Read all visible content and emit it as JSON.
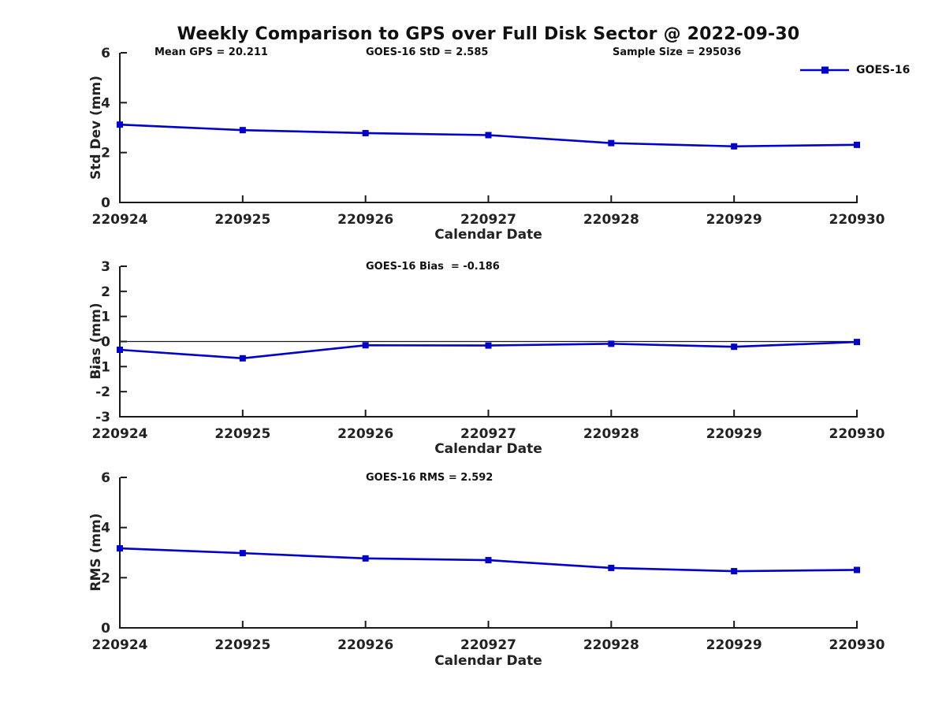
{
  "figure": {
    "title": "Weekly Comparison to GPS over Full Disk Sector @ 2022-09-30",
    "background": "#ffffff",
    "text_color": "#111111",
    "axis_color": "#1a1a1a"
  },
  "legend": {
    "label": "GOES-16",
    "color": "#0000cc"
  },
  "chart_data": [
    {
      "type": "line",
      "name": "std-dev-vs-date",
      "annotations": [
        "Mean GPS = 20.211",
        "GOES-16 StD = 2.585",
        "Sample Size = 295036"
      ],
      "categories": [
        "220924",
        "220925",
        "220926",
        "220927",
        "220928",
        "220929",
        "220930"
      ],
      "series": [
        {
          "name": "GOES-16",
          "color": "#0000cc",
          "values": [
            3.12,
            2.9,
            2.78,
            2.7,
            2.38,
            2.25,
            2.31
          ]
        }
      ],
      "xlabel": "Calendar Date",
      "ylabel": "Std Dev (mm)",
      "ylim": [
        0,
        6
      ],
      "yticks": [
        0,
        2,
        4,
        6
      ],
      "zero_line": false,
      "grid": false,
      "legend_position": "top-right",
      "marker": "filled-square"
    },
    {
      "type": "line",
      "name": "bias-vs-date",
      "annotations": [
        "GOES-16 Bias  = -0.186"
      ],
      "categories": [
        "220924",
        "220925",
        "220926",
        "220927",
        "220928",
        "220929",
        "220930"
      ],
      "series": [
        {
          "name": "GOES-16",
          "color": "#0000cc",
          "values": [
            -0.33,
            -0.67,
            -0.15,
            -0.16,
            -0.09,
            -0.21,
            -0.02
          ]
        }
      ],
      "xlabel": "Calendar Date",
      "ylabel": "Bias (mm)",
      "ylim": [
        -3,
        3
      ],
      "yticks": [
        -3,
        -2,
        -1,
        0,
        1,
        2,
        3
      ],
      "zero_line": true,
      "grid": false,
      "marker": "filled-square"
    },
    {
      "type": "line",
      "name": "rms-vs-date",
      "annotations": [
        "GOES-16 RMS = 2.592"
      ],
      "categories": [
        "220924",
        "220925",
        "220926",
        "220927",
        "220928",
        "220929",
        "220930"
      ],
      "series": [
        {
          "name": "GOES-16",
          "color": "#0000cc",
          "values": [
            3.17,
            2.98,
            2.77,
            2.7,
            2.39,
            2.26,
            2.31
          ]
        }
      ],
      "xlabel": "Calendar Date",
      "ylabel": "RMS (mm)",
      "ylim": [
        0,
        6
      ],
      "yticks": [
        0,
        2,
        4,
        6
      ],
      "zero_line": false,
      "grid": false,
      "marker": "filled-square"
    }
  ]
}
